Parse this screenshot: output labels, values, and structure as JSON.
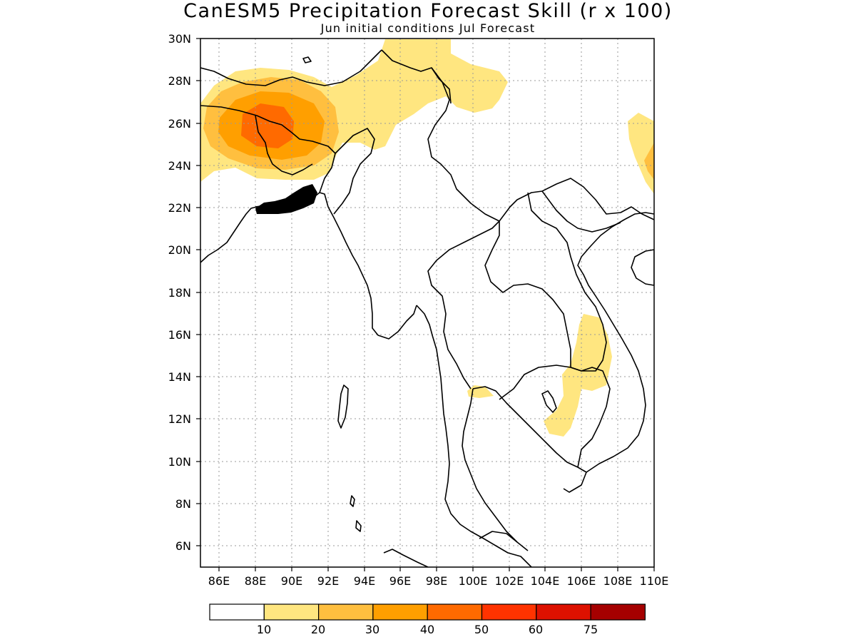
{
  "title": "CanESM5 Precipitation Forecast Skill (r x 100)",
  "subtitle": "Jun initial conditions  Jul Forecast",
  "lat_labels": [
    "30N",
    "28N",
    "26N",
    "24N",
    "22N",
    "20N",
    "18N",
    "16N",
    "14N",
    "12N",
    "10N",
    "8N",
    "6N"
  ],
  "lon_labels": [
    "86E",
    "88E",
    "90E",
    "92E",
    "94E",
    "96E",
    "98E",
    "100E",
    "102E",
    "104E",
    "106E",
    "108E",
    "110E"
  ],
  "colorbar": {
    "labels": [
      "10",
      "20",
      "30",
      "40",
      "50",
      "60",
      "75"
    ],
    "colors": [
      "#ffffff",
      "#ffe680",
      "#ffbf3f",
      "#ff9f00",
      "#ff6a00",
      "#ff3300",
      "#dd1100",
      "#a50000"
    ]
  },
  "map_extent": {
    "lon": [
      85,
      110
    ],
    "lat": [
      5,
      30
    ]
  }
}
